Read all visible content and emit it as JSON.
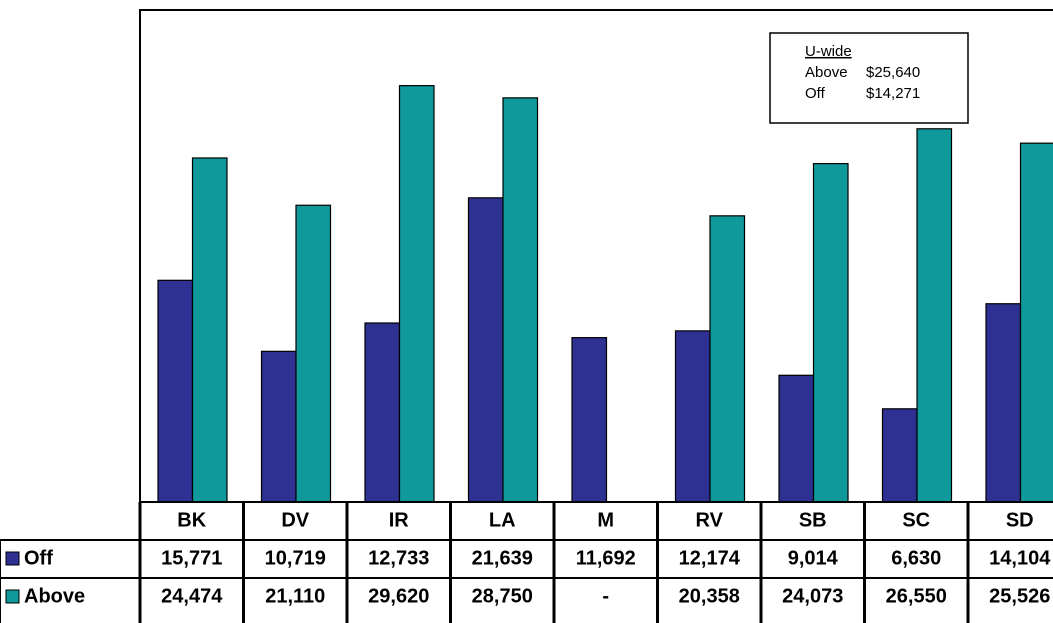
{
  "chart_data": {
    "type": "bar",
    "categories": [
      "BK",
      "DV",
      "IR",
      "LA",
      "M",
      "RV",
      "SB",
      "SC",
      "SD"
    ],
    "series": [
      {
        "name": "Off",
        "color": "#2e3192",
        "values": [
          15771,
          10719,
          12733,
          21639,
          11692,
          12174,
          9014,
          6630,
          14104
        ],
        "value_labels": [
          "15,771",
          "10,719",
          "12,733",
          "21,639",
          "11,692",
          "12,174",
          "9,014",
          "6,630",
          "14,104"
        ]
      },
      {
        "name": "Above",
        "color": "#10999a",
        "values": [
          24474,
          21110,
          29620,
          28750,
          null,
          20358,
          24073,
          26550,
          25526
        ],
        "value_labels": [
          "24,474",
          "21,110",
          "29,620",
          "28,750",
          "-",
          "20,358",
          "24,073",
          "26,550",
          "25,526"
        ]
      }
    ],
    "ylim": [
      0,
      35000
    ],
    "annotation": {
      "title": "U-wide",
      "lines": [
        [
          "Above",
          "$25,640"
        ],
        [
          "Off",
          "$14,271"
        ]
      ]
    }
  }
}
